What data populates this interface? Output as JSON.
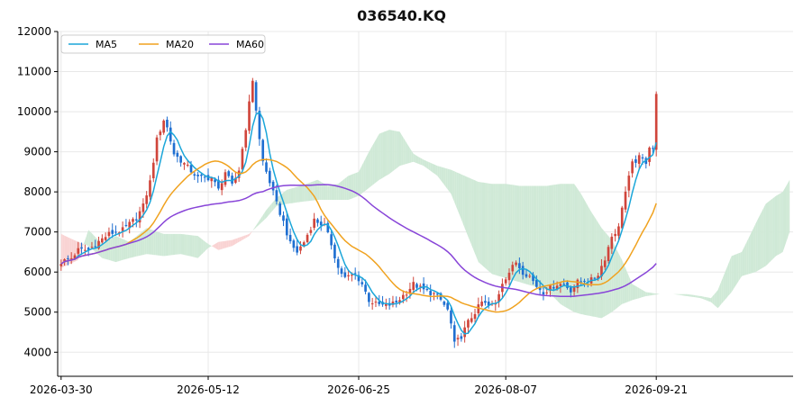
{
  "chart_data": {
    "type": "candlestick",
    "title": "036540.KQ",
    "xlabel": "",
    "ylabel": "",
    "ylim": [
      3400,
      12000
    ],
    "grid": true,
    "legend_placement": "top-left",
    "y_ticks": [
      "4000",
      "5000",
      "6000",
      "7000",
      "8000",
      "9000",
      "10000",
      "11000",
      "12000"
    ],
    "x_tick_labels": [
      "2026-03-30",
      "2026-05-12",
      "2026-06-25",
      "2026-08-07",
      "2026-09-21"
    ],
    "x_tick_index": [
      0,
      43,
      87,
      130,
      174
    ],
    "n_bars": 175,
    "x_range": [
      -1,
      214
    ],
    "colors": {
      "up": "#d0453b",
      "down": "#1f6fd1",
      "ma5": "#1ba6d9",
      "ma20": "#f0a21f",
      "ma60": "#8845d8",
      "cloud_bull": "#cfe9d6",
      "cloud_bear": "#f9d3d3"
    },
    "legend": [
      {
        "label": "MA5",
        "color": "#1ba6d9"
      },
      {
        "label": "MA20",
        "color": "#f0a21f"
      },
      {
        "label": "MA60",
        "color": "#8845d8"
      }
    ],
    "close_anchors": [
      [
        0,
        6250
      ],
      [
        3,
        6350
      ],
      [
        5,
        6550
      ],
      [
        8,
        6550
      ],
      [
        10,
        6700
      ],
      [
        14,
        6950
      ],
      [
        18,
        7050
      ],
      [
        22,
        7350
      ],
      [
        24,
        7650
      ],
      [
        26,
        8250
      ],
      [
        28,
        9300
      ],
      [
        30,
        9800
      ],
      [
        31,
        9600
      ],
      [
        33,
        8950
      ],
      [
        36,
        8700
      ],
      [
        40,
        8350
      ],
      [
        44,
        8350
      ],
      [
        46,
        8050
      ],
      [
        48,
        8500
      ],
      [
        50,
        8150
      ],
      [
        52,
        8550
      ],
      [
        54,
        9600
      ],
      [
        56,
        10800
      ],
      [
        58,
        9300
      ],
      [
        59,
        8750
      ],
      [
        61,
        8250
      ],
      [
        63,
        7700
      ],
      [
        65,
        7250
      ],
      [
        67,
        6700
      ],
      [
        69,
        6500
      ],
      [
        71,
        6750
      ],
      [
        74,
        7300
      ],
      [
        77,
        7150
      ],
      [
        79,
        6700
      ],
      [
        81,
        6100
      ],
      [
        83,
        5850
      ],
      [
        86,
        5950
      ],
      [
        88,
        5700
      ],
      [
        90,
        5300
      ],
      [
        92,
        5200
      ],
      [
        95,
        5150
      ],
      [
        98,
        5250
      ],
      [
        101,
        5500
      ],
      [
        103,
        5700
      ],
      [
        106,
        5550
      ],
      [
        109,
        5450
      ],
      [
        111,
        5300
      ],
      [
        113,
        5050
      ],
      [
        114,
        4700
      ],
      [
        115,
        4200
      ],
      [
        117,
        4400
      ],
      [
        119,
        4750
      ],
      [
        121,
        5000
      ],
      [
        123,
        5250
      ],
      [
        125,
        5150
      ],
      [
        127,
        5200
      ],
      [
        129,
        5750
      ],
      [
        131,
        6000
      ],
      [
        133,
        6250
      ],
      [
        135,
        6000
      ],
      [
        137,
        5900
      ],
      [
        139,
        5650
      ],
      [
        141,
        5500
      ],
      [
        143,
        5600
      ],
      [
        145,
        5700
      ],
      [
        147,
        5700
      ],
      [
        149,
        5550
      ],
      [
        151,
        5750
      ],
      [
        153,
        5800
      ],
      [
        155,
        5800
      ],
      [
        157,
        5950
      ],
      [
        159,
        6350
      ],
      [
        161,
        6900
      ],
      [
        163,
        7100
      ],
      [
        164,
        7650
      ],
      [
        165,
        8000
      ],
      [
        167,
        8700
      ],
      [
        169,
        8850
      ],
      [
        171,
        8750
      ],
      [
        172,
        9150
      ],
      [
        173,
        9100
      ],
      [
        174,
        10400
      ]
    ],
    "ichimoku_span_a": [
      [
        0,
        6100
      ],
      [
        5,
        6300
      ],
      [
        8,
        7050
      ],
      [
        12,
        6700
      ],
      [
        16,
        6900
      ],
      [
        20,
        6750
      ],
      [
        25,
        7100
      ],
      [
        30,
        6950
      ],
      [
        35,
        6950
      ],
      [
        40,
        6900
      ],
      [
        43,
        6700
      ],
      [
        46,
        6550
      ],
      [
        50,
        6650
      ],
      [
        55,
        6900
      ],
      [
        60,
        7550
      ],
      [
        63,
        7850
      ],
      [
        66,
        8050
      ],
      [
        70,
        8150
      ],
      [
        75,
        8300
      ],
      [
        78,
        8150
      ],
      [
        81,
        8200
      ],
      [
        84,
        8400
      ],
      [
        87,
        8500
      ],
      [
        90,
        9000
      ],
      [
        93,
        9450
      ],
      [
        96,
        9550
      ],
      [
        99,
        9500
      ],
      [
        103,
        8950
      ],
      [
        106,
        8800
      ],
      [
        110,
        8650
      ],
      [
        114,
        8550
      ],
      [
        118,
        8400
      ],
      [
        122,
        8250
      ],
      [
        126,
        8200
      ],
      [
        130,
        8200
      ],
      [
        134,
        8150
      ],
      [
        138,
        8150
      ],
      [
        142,
        8150
      ],
      [
        146,
        8200
      ],
      [
        150,
        8200
      ],
      [
        152,
        7950
      ],
      [
        155,
        7500
      ],
      [
        158,
        7100
      ],
      [
        161,
        6800
      ],
      [
        164,
        6300
      ],
      [
        167,
        5700
      ],
      [
        171,
        5500
      ],
      [
        175,
        5450
      ],
      [
        179,
        5450
      ],
      [
        183,
        5450
      ],
      [
        187,
        5400
      ],
      [
        190,
        5350
      ],
      [
        192,
        5550
      ],
      [
        196,
        6400
      ],
      [
        199,
        6500
      ],
      [
        203,
        7200
      ],
      [
        206,
        7700
      ],
      [
        209,
        7900
      ],
      [
        211,
        8000
      ],
      [
        213,
        8300
      ]
    ],
    "ichimoku_span_b": [
      [
        0,
        6950
      ],
      [
        5,
        6750
      ],
      [
        8,
        6650
      ],
      [
        12,
        6350
      ],
      [
        16,
        6250
      ],
      [
        20,
        6350
      ],
      [
        25,
        6450
      ],
      [
        30,
        6400
      ],
      [
        35,
        6450
      ],
      [
        40,
        6350
      ],
      [
        43,
        6600
      ],
      [
        46,
        6750
      ],
      [
        50,
        6800
      ],
      [
        55,
        6950
      ],
      [
        60,
        7350
      ],
      [
        63,
        7650
      ],
      [
        66,
        7700
      ],
      [
        70,
        7750
      ],
      [
        75,
        7800
      ],
      [
        78,
        7800
      ],
      [
        81,
        7800
      ],
      [
        84,
        7800
      ],
      [
        87,
        7900
      ],
      [
        90,
        8100
      ],
      [
        93,
        8300
      ],
      [
        96,
        8450
      ],
      [
        99,
        8650
      ],
      [
        103,
        8750
      ],
      [
        106,
        8650
      ],
      [
        110,
        8400
      ],
      [
        114,
        7950
      ],
      [
        118,
        7100
      ],
      [
        122,
        6250
      ],
      [
        126,
        5950
      ],
      [
        130,
        5850
      ],
      [
        134,
        5750
      ],
      [
        138,
        5650
      ],
      [
        142,
        5550
      ],
      [
        146,
        5200
      ],
      [
        150,
        5000
      ],
      [
        152,
        4950
      ],
      [
        155,
        4900
      ],
      [
        158,
        4850
      ],
      [
        161,
        5000
      ],
      [
        164,
        5200
      ],
      [
        167,
        5300
      ],
      [
        171,
        5400
      ],
      [
        175,
        5450
      ],
      [
        179,
        5450
      ],
      [
        183,
        5400
      ],
      [
        187,
        5350
      ],
      [
        190,
        5250
      ],
      [
        192,
        5100
      ],
      [
        196,
        5500
      ],
      [
        199,
        5900
      ],
      [
        203,
        6000
      ],
      [
        206,
        6150
      ],
      [
        209,
        6400
      ],
      [
        211,
        6500
      ],
      [
        213,
        7000
      ]
    ]
  }
}
